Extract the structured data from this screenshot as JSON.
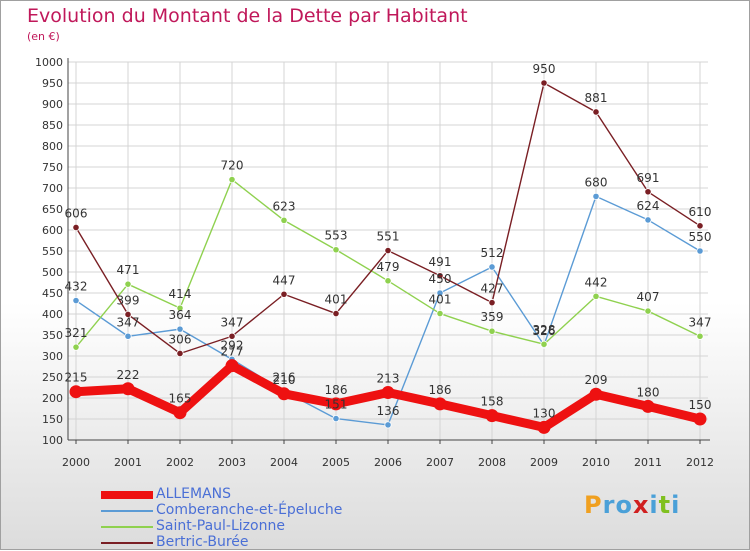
{
  "header": {
    "title": "Evolution du Montant de la Dette par Habitant",
    "unit": "(en €)"
  },
  "brand": {
    "letters": [
      "P",
      "r",
      "o",
      "x",
      "i",
      "t",
      "i"
    ],
    "colors": [
      "#f0a020",
      "#4aa0d8",
      "#4aa0d8",
      "#d02020",
      "#4aa0d8",
      "#80c020",
      "#4aa0d8"
    ]
  },
  "chart_data": {
    "type": "line",
    "title": "Evolution du Montant de la Dette par Habitant",
    "ylabel": "(en €)",
    "xlabel": "",
    "categories": [
      "2000",
      "2001",
      "2002",
      "2003",
      "2004",
      "2005",
      "2006",
      "2007",
      "2008",
      "2009",
      "2010",
      "2011",
      "2012"
    ],
    "ylim": [
      100,
      1000
    ],
    "yticks": [
      100,
      150,
      200,
      250,
      300,
      350,
      400,
      450,
      500,
      550,
      600,
      650,
      700,
      750,
      800,
      850,
      900,
      950,
      1000
    ],
    "grid": true,
    "legend_position": "bottom-left",
    "series": [
      {
        "name": "Comberanche-et-Épeluche",
        "color": "#5b9bd5",
        "values": [
          432,
          347,
          364,
          292,
          216,
          151,
          136,
          450,
          512,
          326,
          680,
          624,
          550
        ],
        "labels": [
          "432",
          "347",
          "364",
          "292",
          "216",
          "151",
          "136",
          "450",
          "512",
          "326",
          "680",
          "624",
          "550"
        ]
      },
      {
        "name": "Saint-Paul-Lizonne",
        "color": "#8fd14f",
        "values": [
          321,
          471,
          414,
          720,
          623,
          553,
          479,
          401,
          359,
          328,
          442,
          407,
          347
        ],
        "labels": [
          "321",
          "471",
          "414",
          "720",
          "623",
          "553",
          "479",
          "401",
          "359",
          "328",
          "442",
          "407",
          "347"
        ]
      },
      {
        "name": "Bertric-Burée",
        "color": "#7a1f24",
        "values": [
          606,
          399,
          306,
          347,
          447,
          401,
          551,
          491,
          427,
          950,
          881,
          691,
          610
        ],
        "labels": [
          "606",
          "399",
          "306",
          "347",
          "447",
          "401",
          "551",
          "491",
          "427",
          "950",
          "881",
          "691",
          "610"
        ]
      },
      {
        "name": "ALLEMANS",
        "color": "#ee1111",
        "values": [
          215,
          222,
          165,
          277,
          210,
          186,
          213,
          186,
          158,
          130,
          209,
          180,
          150
        ],
        "labels": [
          "215",
          "222",
          "165",
          "277",
          "210",
          "186",
          "213",
          "186",
          "158",
          "130",
          "209",
          "180",
          "150"
        ]
      }
    ]
  },
  "legend": {
    "items": [
      {
        "label": "ALLEMANS",
        "color": "#ee1111"
      },
      {
        "label": "Comberanche-et-Épeluche",
        "color": "#5b9bd5"
      },
      {
        "label": "Saint-Paul-Lizonne",
        "color": "#8fd14f"
      },
      {
        "label": "Bertric-Burée",
        "color": "#7a1f24"
      }
    ]
  }
}
